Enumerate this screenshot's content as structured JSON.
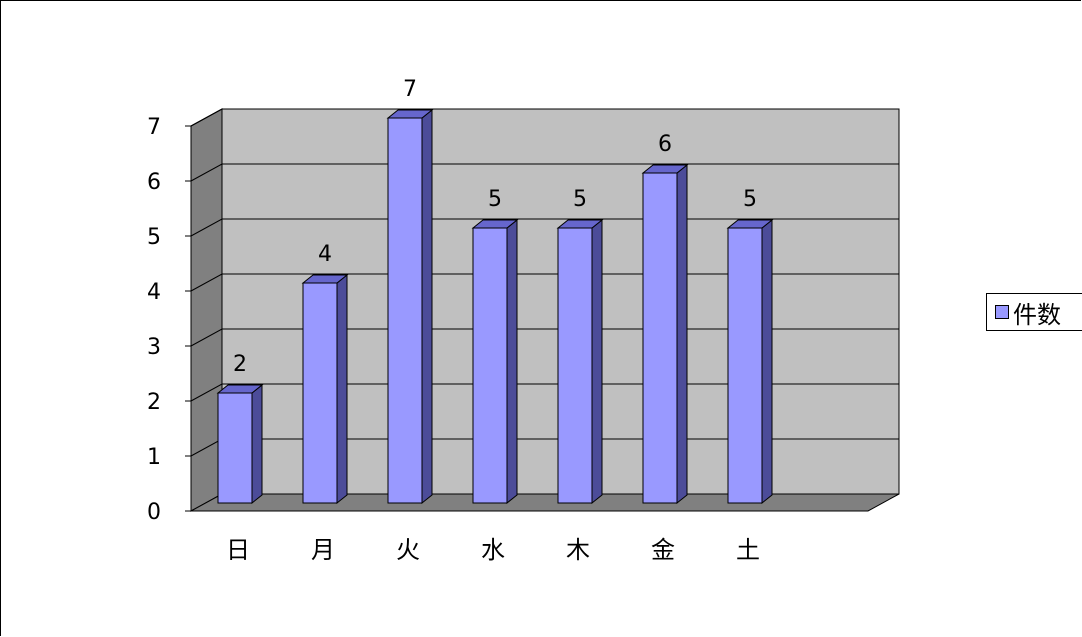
{
  "chart_data": {
    "type": "bar",
    "categories": [
      "日",
      "月",
      "火",
      "水",
      "木",
      "金",
      "土"
    ],
    "series": [
      {
        "name": "件数",
        "values": [
          2,
          4,
          7,
          5,
          5,
          6,
          5
        ]
      }
    ],
    "ylim": [
      0,
      7
    ],
    "yticks": [
      0,
      1,
      2,
      3,
      4,
      5,
      6,
      7
    ],
    "grid": true,
    "legend": "right",
    "data_labels": true,
    "style": "3d-column",
    "colors": {
      "bar_front": "#9999ff",
      "bar_side": "#4c4c99",
      "bar_top": "#6666cc",
      "wall": "#c0c0c0",
      "side_wall": "#808080",
      "floor": "#808080"
    }
  }
}
